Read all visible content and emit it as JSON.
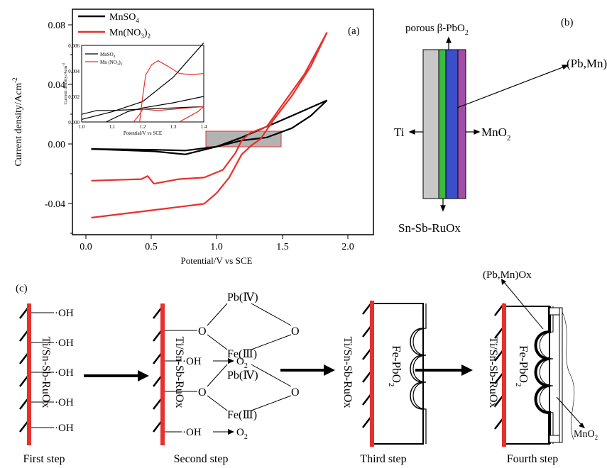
{
  "panel_a": {
    "label": "(a)",
    "ylabel": "Current density/Acm",
    "ylabel_sup": "-2",
    "xlabel": "Potential/V vs SCE",
    "yticks": [
      "0.08",
      "0.04",
      "0.00",
      "-0.04"
    ],
    "xticks": [
      "0.0",
      "0.5",
      "1.0",
      "1.5",
      "2.0"
    ],
    "legend": [
      {
        "label": "MnSO",
        "sub": "4",
        "color": "#000000"
      },
      {
        "label": "Mn(NO",
        "sub": "3",
        "tail": ")",
        "tail_sub": "2",
        "color": "#e8302c"
      }
    ],
    "inset": {
      "ylabel": "Current density/Acm",
      "ylabel_sup": "-2",
      "xlabel": "Potential/V vs SCE",
      "yticks": [
        "0.006",
        "0.004",
        "0.002",
        "0.000"
      ],
      "xticks": [
        "1.0",
        "1.1",
        "1.2",
        "1.3",
        "1.4"
      ],
      "legend": [
        {
          "label": "MnSO",
          "sub": "4",
          "color": "#000000"
        },
        {
          "label": "Mn (NO",
          "sub": "3",
          "tail": ")",
          "tail_sub": "2",
          "color": "#e8302c"
        }
      ]
    }
  },
  "chart_data": {
    "type": "line",
    "xlabel": "Potential/V vs SCE",
    "ylabel": "Current density/Acm-2",
    "xlim": [
      -0.15,
      2.25
    ],
    "ylim": [
      -0.057,
      0.089
    ],
    "series": [
      {
        "name": "MnSO4",
        "color": "#000000",
        "forward": [
          [
            0,
            -0.0015
          ],
          [
            0.5,
            -0.002
          ],
          [
            0.75,
            -0.0025
          ],
          [
            1.0,
            0.0
          ],
          [
            1.2,
            0.004
          ],
          [
            1.4,
            0.006
          ],
          [
            1.6,
            0.012
          ],
          [
            1.75,
            0.02
          ],
          [
            1.88,
            0.03
          ]
        ],
        "reverse": [
          [
            1.88,
            0.03
          ],
          [
            1.6,
            0.02
          ],
          [
            1.4,
            0.013
          ],
          [
            1.2,
            0.006
          ],
          [
            1.0,
            0.0
          ],
          [
            0.75,
            -0.005
          ],
          [
            0.5,
            -0.003
          ],
          [
            0,
            -0.0015
          ]
        ]
      },
      {
        "name": "Mn(NO3)2",
        "color": "#e8302c",
        "forward": [
          [
            0,
            -0.022
          ],
          [
            0.4,
            -0.021
          ],
          [
            0.45,
            -0.019
          ],
          [
            0.5,
            -0.024
          ],
          [
            0.7,
            -0.021
          ],
          [
            0.9,
            -0.02
          ],
          [
            1.05,
            -0.015
          ],
          [
            1.15,
            -0.004
          ],
          [
            1.2,
            0.004
          ],
          [
            1.27,
            0.009
          ],
          [
            1.4,
            0.013
          ],
          [
            1.55,
            0.03
          ],
          [
            1.7,
            0.047
          ],
          [
            1.88,
            0.074
          ]
        ],
        "reverse": [
          [
            1.88,
            0.074
          ],
          [
            1.75,
            0.052
          ],
          [
            1.6,
            0.033
          ],
          [
            1.45,
            0.017
          ],
          [
            1.35,
            0.005
          ],
          [
            1.28,
            0.001
          ],
          [
            1.2,
            -0.005
          ],
          [
            1.1,
            -0.02
          ],
          [
            1.0,
            -0.03
          ],
          [
            0.9,
            -0.037
          ],
          [
            0.6,
            -0.04
          ],
          [
            0.3,
            -0.043
          ],
          [
            0,
            -0.046
          ]
        ]
      }
    ],
    "inset": {
      "xlim": [
        1.0,
        1.4
      ],
      "ylim": [
        0.0,
        0.006
      ],
      "series": [
        {
          "name": "MnSO4",
          "color": "#000000",
          "segments": [
            [
              [
                1.0,
                0.0006
              ],
              [
                1.05,
                0.0009
              ],
              [
                1.1,
                0.0009
              ],
              [
                1.2,
                0.001
              ],
              [
                1.3,
                0.0011
              ],
              [
                1.4,
                0.0012
              ]
            ],
            [
              [
                1.08,
                0.0
              ],
              [
                1.15,
                0.0008
              ],
              [
                1.2,
                0.0011
              ],
              [
                1.3,
                0.0015
              ],
              [
                1.4,
                0.002
              ]
            ],
            [
              [
                1.0,
                0.0002
              ],
              [
                1.1,
                0.0008
              ],
              [
                1.2,
                0.0016
              ],
              [
                1.3,
                0.0035
              ],
              [
                1.4,
                0.0062
              ]
            ]
          ]
        },
        {
          "name": "Mn(NO3)2",
          "color": "#e8302c",
          "segments": [
            [
              [
                1.19,
                0.0
              ],
              [
                1.2,
                0.002
              ],
              [
                1.21,
                0.0037
              ],
              [
                1.23,
                0.0045
              ],
              [
                1.25,
                0.0048
              ],
              [
                1.28,
                0.0044
              ],
              [
                1.32,
                0.0038
              ],
              [
                1.36,
                0.0037
              ],
              [
                1.4,
                0.0038
              ]
            ],
            [
              [
                1.17,
                0.0
              ],
              [
                1.19,
                0.0006
              ],
              [
                1.2,
                0.001
              ],
              [
                1.25,
                0.0009
              ],
              [
                1.3,
                0.001
              ],
              [
                1.35,
                0.0011
              ],
              [
                1.4,
                0.0012
              ]
            ],
            [
              [
                1.32,
                0.0
              ],
              [
                1.35,
                0.0004
              ],
              [
                1.38,
                0.0008
              ],
              [
                1.4,
                0.0012
              ]
            ]
          ]
        }
      ]
    }
  },
  "panel_b": {
    "label": "(b)",
    "top": "porous β-PbO",
    "top_sub": "2",
    "right_top": "(Pb,Mn)Ox",
    "left": "Ti",
    "right": "MnO",
    "right_sub": "2",
    "bottom": "Sn-Sb-RuOx",
    "layer_colors": [
      "#c8c8c8",
      "#3cba3c",
      "#3a4fc8",
      "#a24ea8"
    ]
  },
  "panel_c": {
    "label": "(c)",
    "electrode": "Ti/Sn-Sb-RuOx",
    "oh": "·OH",
    "pb": "Pb(Ⅳ)",
    "fe": "Fe(Ⅲ)",
    "o": "O",
    "o2": "O",
    "o2_sub": "2",
    "fe_pbo": "Fe-PbO",
    "fe_pbo_sub": "2",
    "pbmn": "(Pb,Mn)Ox",
    "mno2": "MnO",
    "mno2_sub": "2",
    "steps": [
      "First step",
      "Second step",
      "Third step",
      "Fourth step"
    ]
  }
}
